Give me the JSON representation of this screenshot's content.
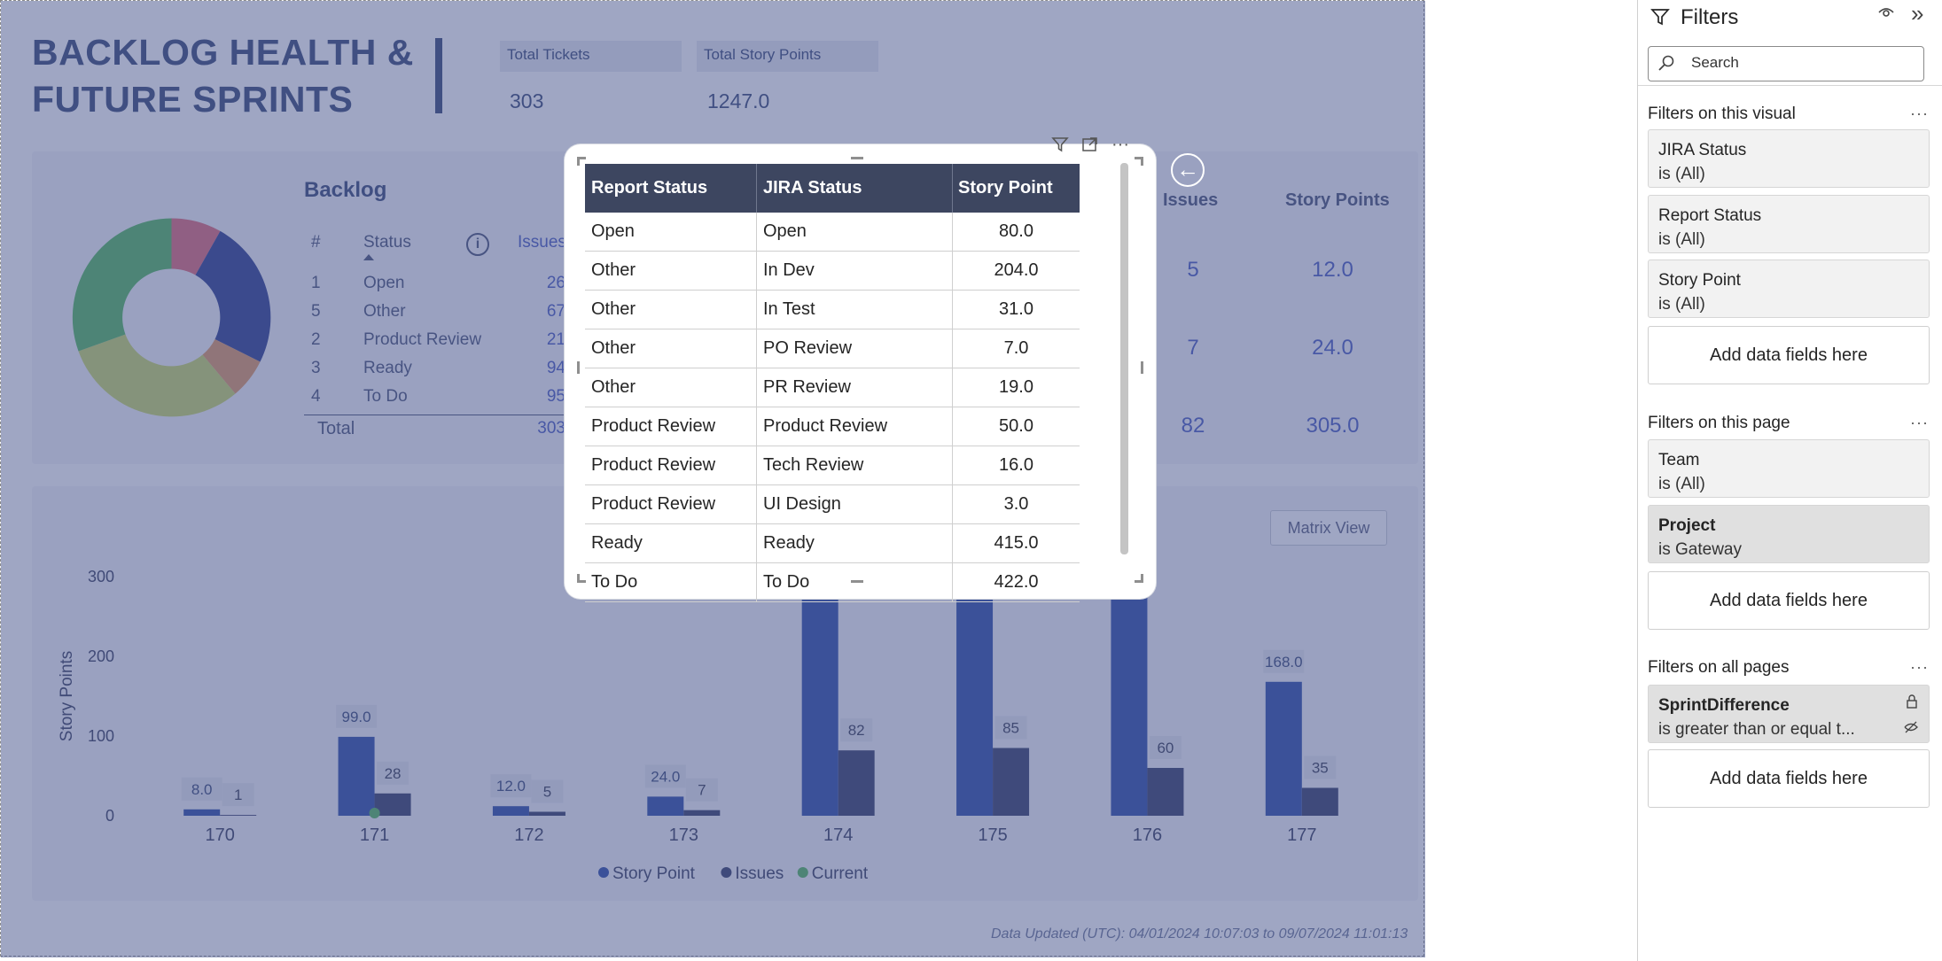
{
  "report": {
    "title_line1": "BACKLOG HEALTH &",
    "title_line2": "FUTURE SPRINTS",
    "kpis": [
      {
        "label": "Total Tickets",
        "value": "303"
      },
      {
        "label": "Total Story Points",
        "value": "1247.0"
      }
    ],
    "backlog": {
      "title": "Backlog",
      "headers": {
        "num": "#",
        "status": "Status",
        "issues": "Issues"
      },
      "rows": [
        {
          "num": "1",
          "status": "Open",
          "issues": "26"
        },
        {
          "num": "5",
          "status": "Other",
          "issues": "67"
        },
        {
          "num": "2",
          "status": "Product Review",
          "issues": "21"
        },
        {
          "num": "3",
          "status": "Ready",
          "issues": "94"
        },
        {
          "num": "4",
          "status": "To Do",
          "issues": "95"
        }
      ],
      "total_label": "Total",
      "total_value": "303",
      "donut_colors": [
        "#e06b7a",
        "#2f3f8f",
        "#e09a64",
        "#c9d86a",
        "#54b85f"
      ]
    },
    "right_table": {
      "headers": {
        "issues": "Issues",
        "story_points": "Story Points"
      },
      "rows": [
        {
          "issues": "5",
          "story_points": "12.0"
        },
        {
          "issues": "7",
          "story_points": "24.0"
        },
        {
          "issues": "82",
          "story_points": "305.0"
        }
      ]
    },
    "matrix_view_label": "Matrix View",
    "footer_note": "Data Updated (UTC): 04/01/2024 10:07:03 to 09/07/2024 11:01:13"
  },
  "chart_data": {
    "type": "bar",
    "ylabel": "Story Points",
    "ylim": [
      0,
      300
    ],
    "yticks": [
      "0",
      "100",
      "200",
      "300"
    ],
    "categories": [
      "170",
      "171",
      "172",
      "173",
      "174",
      "175",
      "176",
      "177"
    ],
    "series": [
      {
        "name": "Story Point",
        "values": [
          8.0,
          99.0,
          12.0,
          24.0,
          null,
          null,
          null,
          168.0
        ],
        "labels": [
          "8.0",
          "99.0",
          "12.0",
          "24.0",
          "",
          "",
          "",
          "168.0"
        ]
      },
      {
        "name": "Issues",
        "values": [
          1,
          28,
          5,
          7,
          82,
          85,
          60,
          35
        ],
        "labels": [
          "1",
          "28",
          "5",
          "7",
          "82",
          "85",
          "60",
          "35"
        ]
      },
      {
        "name": "Current",
        "values": [
          null,
          0,
          null,
          null,
          null,
          null,
          null,
          null
        ]
      }
    ],
    "colors": {
      "Story Point": "#2f4ea8",
      "Issues": "#38406a",
      "Current": "#54b85f"
    },
    "legend_position": "bottom",
    "legend": [
      "Story Point",
      "Issues",
      "Current"
    ]
  },
  "focused_table": {
    "headers": {
      "report_status": "Report Status",
      "jira_status": "JIRA Status",
      "story_point": "Story Point"
    },
    "rows": [
      {
        "report_status": "Open",
        "jira_status": "Open",
        "story_point": "80.0"
      },
      {
        "report_status": "Other",
        "jira_status": "In Dev",
        "story_point": "204.0"
      },
      {
        "report_status": "Other",
        "jira_status": "In Test",
        "story_point": "31.0"
      },
      {
        "report_status": "Other",
        "jira_status": "PO Review",
        "story_point": "7.0"
      },
      {
        "report_status": "Other",
        "jira_status": "PR Review",
        "story_point": "19.0"
      },
      {
        "report_status": "Product Review",
        "jira_status": "Product Review",
        "story_point": "50.0"
      },
      {
        "report_status": "Product Review",
        "jira_status": "Tech Review",
        "story_point": "16.0"
      },
      {
        "report_status": "Product Review",
        "jira_status": "UI Design",
        "story_point": "3.0"
      },
      {
        "report_status": "Ready",
        "jira_status": "Ready",
        "story_point": "415.0"
      },
      {
        "report_status": "To Do",
        "jira_status": "To Do",
        "story_point": "422.0"
      }
    ],
    "header_color": "#3d4660",
    "icons": [
      "filter-icon",
      "focus-mode-icon",
      "more-options-icon"
    ]
  },
  "filters_pane": {
    "title": "Filters",
    "search_placeholder": "Search",
    "sections": {
      "visual": "Filters on this visual",
      "page": "Filters on this page",
      "all": "Filters on all pages"
    },
    "visual_filters": [
      {
        "name": "JIRA Status",
        "value": "is (All)"
      },
      {
        "name": "Report Status",
        "value": "is (All)"
      },
      {
        "name": "Story Point",
        "value": "is (All)"
      }
    ],
    "page_filters": [
      {
        "name": "Team",
        "value": "is (All)"
      },
      {
        "name": "Project",
        "value": "is Gateway"
      }
    ],
    "all_filters": [
      {
        "name": "SprintDifference",
        "value": "is greater than or equal t..."
      }
    ],
    "add_fields_label": "Add data fields here",
    "more_label": "···"
  }
}
